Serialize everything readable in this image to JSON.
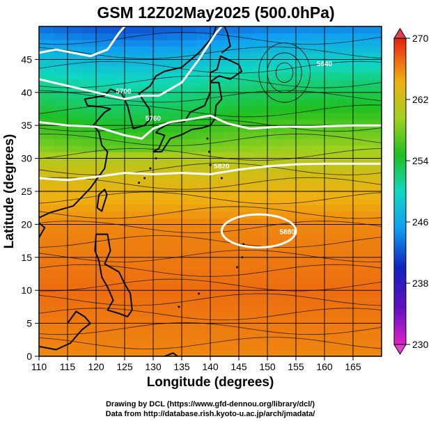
{
  "chart_data": {
    "type": "heatmap",
    "title": "GSM 12Z02May2025 (500.0hPa)",
    "xlabel": "Longitude (degrees)",
    "ylabel": "Latitude  (degrees)",
    "xlim": [
      110,
      170
    ],
    "ylim": [
      0,
      50
    ],
    "xticks": [
      110,
      115,
      120,
      125,
      130,
      135,
      140,
      145,
      150,
      155,
      160,
      165
    ],
    "yticks": [
      0,
      5,
      10,
      15,
      20,
      25,
      30,
      35,
      40,
      45
    ],
    "grid": true,
    "colorbar": {
      "labels": [
        270,
        262,
        254,
        246,
        238,
        230
      ],
      "range": [
        230,
        270
      ]
    },
    "temperature_profile": [
      {
        "lat": 0,
        "value": 266
      },
      {
        "lat": 10,
        "value": 267
      },
      {
        "lat": 20,
        "value": 266
      },
      {
        "lat": 27,
        "value": 263
      },
      {
        "lat": 31,
        "value": 260
      },
      {
        "lat": 36,
        "value": 256
      },
      {
        "lat": 42,
        "value": 252
      },
      {
        "lat": 46,
        "value": 248
      },
      {
        "lat": 50,
        "value": 244
      }
    ],
    "contours": [
      {
        "label": "5880",
        "value": 5880
      },
      {
        "label": "5820",
        "value": 5820
      },
      {
        "label": "5760",
        "value": 5760
      },
      {
        "label": "5700",
        "value": 5700
      },
      {
        "label": "5640",
        "value": 5640
      }
    ],
    "credits": [
      "Drawing by DCL (https://www.gfd-dennou.org/library/dcl/)",
      "Data from http://database.rish.kyoto-u.ac.jp/arch/jmadata/"
    ]
  }
}
